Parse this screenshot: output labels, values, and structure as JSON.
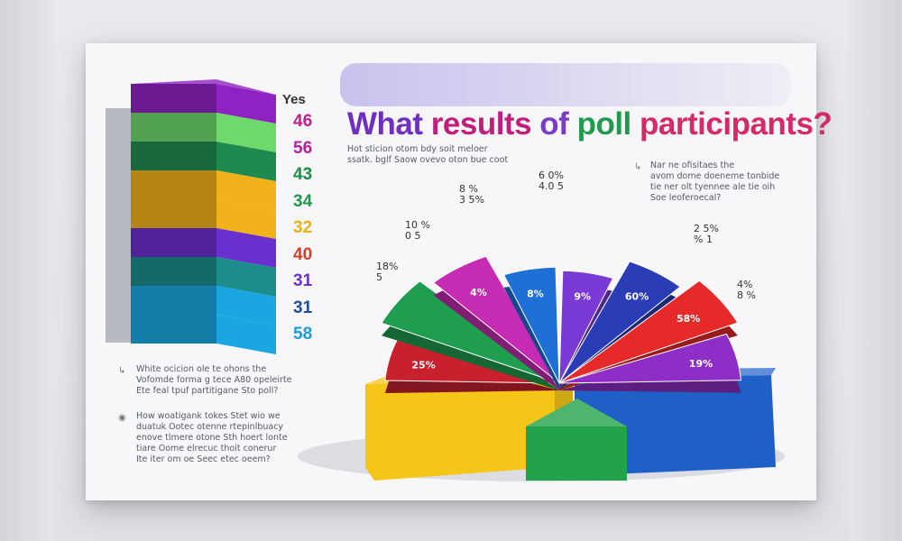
{
  "poster": {
    "title_words": [
      "What",
      "results",
      "of",
      "poll",
      "participants?"
    ],
    "subtitle_lines": [
      "Hot sticion otom bdy soit meloer",
      "ssatk. bglf Saow ovevo oton bue coot"
    ],
    "right_note_lines": [
      "Nar ne ofisitaes the",
      "avom dome doeneme tonbide",
      "tie ner olt tyennee ale tie oih",
      "Soe leoferoecal?"
    ],
    "left_notes": [
      {
        "lines": [
          "White ocicion ole te ohons the",
          "Vofomde forma g tece A80 opeleirte",
          "Ete feal tpuf partitigane Sto poll?"
        ]
      },
      {
        "lines": [
          "How woatigank tokes Stet wio we",
          "duatuk Ootec otenne rtepinlbuacy",
          "enove tlmere otone Sth hoert lonte",
          "tiare Oome elrecuc thoit conerur",
          "Ite iter om oe Seec etec oeem?"
        ]
      }
    ]
  },
  "stacked_bar": {
    "header": "Yes",
    "segments": [
      {
        "value": "46",
        "color": "#8f22c2",
        "value_color": "#c0208c"
      },
      {
        "value": "56",
        "color": "#6fd86a",
        "value_color": "#b0239c"
      },
      {
        "value": "43",
        "color": "#1f8a4f",
        "value_color": "#1c8c48"
      },
      {
        "value": "34",
        "color": "#f2b21b",
        "value_color": "#23964f"
      },
      {
        "value": "32",
        "color": "#f2b21b",
        "value_color": "#e8b31a"
      },
      {
        "value": "40",
        "color": "#6a2fcf",
        "value_color": "#d2402a"
      },
      {
        "value": "31",
        "color": "#1c8c8c",
        "value_color": "#6a32c9"
      },
      {
        "value": "31",
        "color": "#1aa6e0",
        "value_color": "#234d9c"
      },
      {
        "value": "58",
        "color": "#1aa6e0",
        "value_color": "#1f9ad6"
      }
    ]
  },
  "chart_data": {
    "type": "pie",
    "title": "What results of poll participants?",
    "slices": [
      {
        "label": "25%",
        "value": 25,
        "color": "#c8202c"
      },
      {
        "label": "",
        "value": 14,
        "color": "#1e9e4e"
      },
      {
        "label": "4%",
        "value": 4,
        "color": "#c62cb3"
      },
      {
        "label": "8%",
        "value": 8,
        "color": "#1e6fd6"
      },
      {
        "label": "9%",
        "value": 9,
        "color": "#7a3ad6"
      },
      {
        "label": "60%",
        "value": 60,
        "color": "#2a3db5"
      },
      {
        "label": "58%",
        "value": 58,
        "color": "#e62a2a"
      },
      {
        "label": "19%",
        "value": 19,
        "color": "#8e2ec6"
      }
    ],
    "outer_labels": [
      {
        "lines": [
          "18%",
          "5"
        ]
      },
      {
        "lines": [
          "10 %",
          "0 5"
        ]
      },
      {
        "lines": [
          "8 %",
          "3 5%"
        ]
      },
      {
        "lines": [
          "6 0%",
          "4.0 5"
        ]
      },
      {
        "lines": [
          "2 5%",
          "% 1"
        ]
      },
      {
        "lines": [
          "4%",
          "8 %"
        ]
      }
    ],
    "base_blocks": [
      {
        "name": "yellow",
        "color": "#f5c518"
      },
      {
        "name": "green",
        "color": "#22a34a"
      },
      {
        "name": "blue",
        "color": "#1e5fc8"
      }
    ]
  }
}
